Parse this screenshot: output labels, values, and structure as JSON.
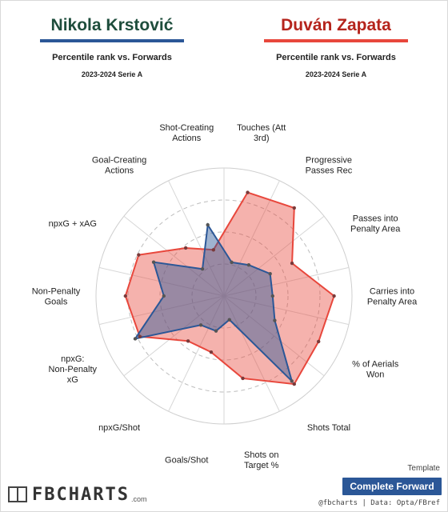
{
  "header": {
    "player1": {
      "name": "Nikola Krstović",
      "subtitle": "Percentile rank vs. Forwards",
      "season": "2023-2024 Serie A",
      "color": "#2b5797"
    },
    "player2": {
      "name": "Duván Zapata",
      "subtitle": "Percentile rank vs. Forwards",
      "season": "2023-2024 Serie A",
      "color": "#e8473c"
    }
  },
  "chart_data": {
    "type": "radar",
    "range": [
      0,
      100
    ],
    "grid": true,
    "axes": [
      "Touches (Att 3rd)",
      "Progressive Passes Rec",
      "Passes into Penalty Area",
      "Carries into Penalty Area",
      "% of Aerials Won",
      "Shots Total",
      "Shots on Target %",
      "Goals/Shot",
      "npxG/Shot",
      "npxG: Non-Penalty xG",
      "Non-Penalty Goals",
      "npxG + xAG",
      "Goal-Creating Actions",
      "Shot-Creating Actions"
    ],
    "series": [
      {
        "name": "Duván Zapata",
        "color": "#e8473c",
        "values": [
          83,
          88,
          59,
          86,
          82,
          88,
          66,
          45,
          45,
          73,
          77,
          74,
          48,
          37
        ]
      },
      {
        "name": "Nikola Krstović",
        "color": "#2b5797",
        "values": [
          27,
          31,
          40,
          38,
          44,
          85,
          19,
          28,
          29,
          77,
          47,
          61,
          27,
          57
        ]
      }
    ]
  },
  "footer": {
    "template_label": "Template",
    "template_value": "Complete Forward",
    "logo_text": "FBCHARTS",
    "logo_suffix": ".com",
    "credit": "@fbcharts | Data: Opta/FBref"
  }
}
